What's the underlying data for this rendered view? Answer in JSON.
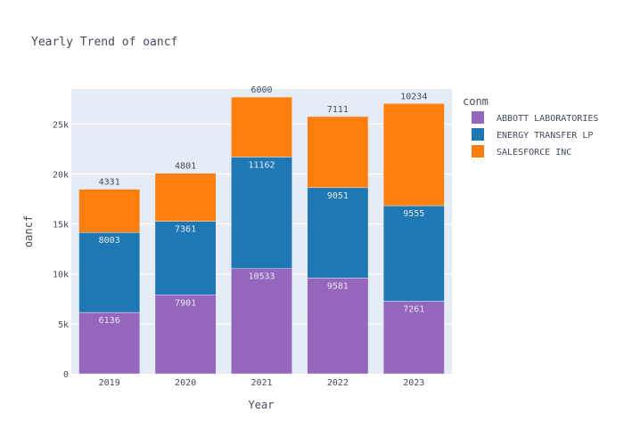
{
  "chart_data": {
    "type": "bar",
    "stacked": true,
    "title": "Yearly Trend of oancf",
    "xlabel": "Year",
    "ylabel": "oancf",
    "categories": [
      "2019",
      "2020",
      "2021",
      "2022",
      "2023"
    ],
    "ylim": [
      0,
      28500
    ],
    "yticks": [
      0,
      5000,
      10000,
      15000,
      20000,
      25000
    ],
    "ytick_labels": [
      "0",
      "5k",
      "10k",
      "15k",
      "20k",
      "25k"
    ],
    "grid": true,
    "legend": {
      "title": "conm",
      "placement": "right"
    },
    "series": [
      {
        "name": "ABBOTT LABORATORIES",
        "color": "#9467bd",
        "values": [
          6136,
          7901,
          10533,
          9581,
          7261
        ]
      },
      {
        "name": "ENERGY TRANSFER LP",
        "color": "#1f77b4",
        "values": [
          8003,
          7361,
          11162,
          9051,
          9555
        ]
      },
      {
        "name": "SALESFORCE INC",
        "color": "#ff7f0e",
        "values": [
          4331,
          4801,
          6000,
          7111,
          10234
        ]
      }
    ]
  }
}
